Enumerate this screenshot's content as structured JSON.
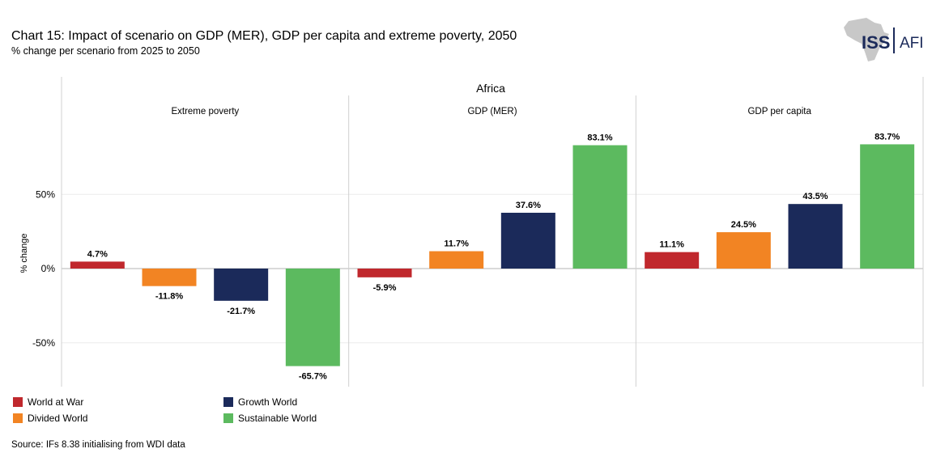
{
  "header": {
    "title": "Chart 15: Impact of scenario on GDP (MER), GDP per capita and extreme poverty, 2050",
    "subtitle": "% change per scenario from 2025 to 2050"
  },
  "logo": {
    "left": "ISS",
    "right": "AFI"
  },
  "source": "Source: IFs 8.38 initialising from WDI data",
  "chart_data": {
    "type": "bar",
    "title": "Africa",
    "ylabel": "% change",
    "ylim": [
      -80,
      100
    ],
    "yticks": [
      50,
      0,
      -50
    ],
    "ytick_labels": [
      "50%",
      "0%",
      "-50%"
    ],
    "panels": [
      "Extreme poverty",
      "GDP (MER)",
      "GDP per capita"
    ],
    "series": [
      {
        "name": "World at War",
        "color": "#c0282d",
        "values": [
          4.7,
          -5.9,
          11.1
        ],
        "labels": [
          "4.7%",
          "-5.9%",
          "11.1%"
        ]
      },
      {
        "name": "Divided World",
        "color": "#f28423",
        "values": [
          -11.8,
          11.7,
          24.5
        ],
        "labels": [
          "-11.8%",
          "11.7%",
          "24.5%"
        ]
      },
      {
        "name": "Growth World",
        "color": "#1b2a5a",
        "values": [
          -21.7,
          37.6,
          43.5
        ],
        "labels": [
          "-21.7%",
          "37.6%",
          "43.5%"
        ]
      },
      {
        "name": "Sustainable World",
        "color": "#5cba5f",
        "values": [
          -65.7,
          83.1,
          83.7
        ],
        "labels": [
          "-65.7%",
          "83.1%",
          "83.7%"
        ]
      }
    ],
    "legend_position": "bottom-left"
  }
}
